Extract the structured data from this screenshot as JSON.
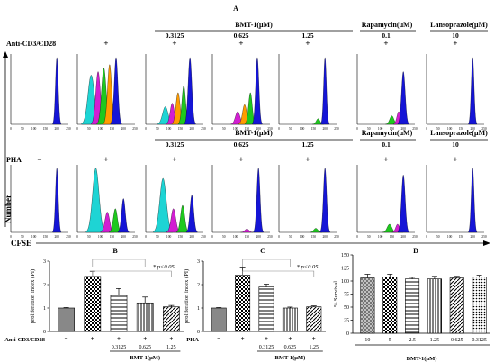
{
  "panel_a": {
    "letter": "A",
    "row1_stim_label": "Anti-CD3/CD28",
    "row2_stim_label": "PHA",
    "headers": {
      "bmt": "BMT-1(μM)",
      "rapamycin": "Rapamycin(μM)",
      "lansoprazole": "Lansoprazole(μM)"
    },
    "concentrations": [
      "0.3125",
      "0.625",
      "1.25",
      "0.1",
      "10"
    ],
    "signs": [
      "−",
      "+",
      "+",
      "+",
      "+",
      "+",
      "+"
    ],
    "y_axis_label": "Number",
    "x_axis_label": "CFSE",
    "x_ticks": [
      "0",
      "50",
      "100",
      "150",
      "200",
      "250"
    ]
  },
  "chart_data": [
    {
      "panel": "B",
      "type": "bar",
      "ylabel": "proliferation index (PI)",
      "ylim": [
        0,
        3
      ],
      "yticks": [
        "0",
        "1",
        "2",
        "3"
      ],
      "stim_label": "Anti-CD3/CD28",
      "signs": [
        "−",
        "+",
        "+",
        "+",
        "+"
      ],
      "categories": [
        "",
        "",
        "0.3125",
        "0.625",
        "1.25"
      ],
      "group_label": "BMT-1(μM)",
      "values": [
        1.0,
        2.35,
        1.55,
        1.22,
        1.05
      ],
      "errors": [
        0.02,
        0.22,
        0.28,
        0.25,
        0.06
      ],
      "annotation": "* p<0.05"
    },
    {
      "panel": "C",
      "type": "bar",
      "ylabel": "proliferation index (PI)",
      "ylim": [
        0,
        3
      ],
      "yticks": [
        "0",
        "1",
        "2",
        "3"
      ],
      "stim_label": "PHA",
      "signs": [
        "−",
        "+",
        "+",
        "+",
        "+"
      ],
      "categories": [
        "",
        "",
        "0.3125",
        "0.625",
        "1.25"
      ],
      "group_label": "BMT-1(μM)",
      "values": [
        1.0,
        2.4,
        1.9,
        1.0,
        1.05
      ],
      "errors": [
        0.02,
        0.35,
        0.12,
        0.04,
        0.04
      ],
      "annotation": "* p<0.05"
    },
    {
      "panel": "D",
      "type": "bar",
      "ylabel": "% Survival",
      "ylim": [
        0,
        150
      ],
      "yticks": [
        "0",
        "25",
        "50",
        "75",
        "100",
        "125",
        "150"
      ],
      "categories": [
        "10",
        "5",
        "2.5",
        "1.25",
        "0.625",
        "0.3125"
      ],
      "group_label": "BMT-1(μM)",
      "values": [
        106,
        108,
        104,
        104,
        106,
        108
      ],
      "errors": [
        7,
        5,
        3,
        5,
        3,
        3
      ]
    }
  ]
}
